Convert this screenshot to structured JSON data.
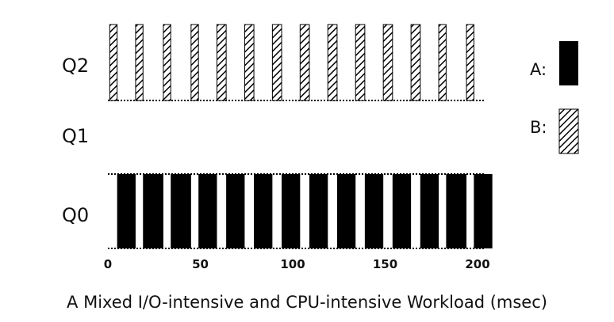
{
  "chart_data": {
    "type": "bar",
    "title": "",
    "xlabel": "A Mixed I/O-intensive and CPU-intensive Workload (msec)",
    "ylabel": "",
    "xlim": [
      0,
      205
    ],
    "xticks": [
      0,
      50,
      100,
      150,
      200
    ],
    "queues": [
      {
        "name": "Q2",
        "level": 2
      },
      {
        "name": "Q1",
        "level": 1
      },
      {
        "name": "Q0",
        "level": 0
      }
    ],
    "legend": [
      {
        "label": "A:",
        "style": "solid",
        "color": "#000000"
      },
      {
        "label": "B:",
        "style": "hatch",
        "color": "#000000"
      }
    ],
    "series": [
      {
        "name": "A",
        "queue": "Q0",
        "style": "solid",
        "intervals": [
          [
            5,
            15
          ],
          [
            19,
            30
          ],
          [
            34,
            45
          ],
          [
            49,
            59
          ],
          [
            64,
            74
          ],
          [
            79,
            89
          ],
          [
            94,
            104
          ],
          [
            109,
            119
          ],
          [
            124,
            134
          ],
          [
            139,
            149
          ],
          [
            154,
            164
          ],
          [
            169,
            179
          ],
          [
            183,
            194
          ],
          [
            198,
            208
          ]
        ]
      },
      {
        "name": "B",
        "queue": "Q2",
        "style": "hatch",
        "intervals": [
          [
            1,
            5
          ],
          [
            15,
            19
          ],
          [
            30,
            34
          ],
          [
            45,
            49
          ],
          [
            59,
            64
          ],
          [
            74,
            79
          ],
          [
            89,
            94
          ],
          [
            104,
            109
          ],
          [
            119,
            124
          ],
          [
            134,
            139
          ],
          [
            149,
            154
          ],
          [
            164,
            169
          ],
          [
            179,
            183
          ],
          [
            194,
            198
          ]
        ]
      }
    ]
  }
}
